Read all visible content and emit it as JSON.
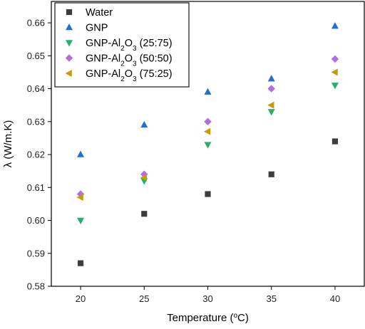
{
  "chart_data": {
    "type": "scatter",
    "xlabel": "Temperature (°C)",
    "xlabel_parts": [
      "Temperature (",
      "o",
      "C)"
    ],
    "ylabel": "λ (W/m.K)",
    "xlim": [
      17.7,
      42.3
    ],
    "ylim": [
      0.58,
      0.6665
    ],
    "x_ticks": [
      20,
      25,
      30,
      35,
      40
    ],
    "y_ticks": [
      0.58,
      0.59,
      0.6,
      0.61,
      0.62,
      0.63,
      0.64,
      0.65,
      0.66
    ],
    "x_tick_labels": [
      "20",
      "25",
      "30",
      "35",
      "40"
    ],
    "y_tick_labels": [
      "0.58",
      "0.59",
      "0.60",
      "0.61",
      "0.62",
      "0.63",
      "0.64",
      "0.65",
      "0.66"
    ],
    "grid": false,
    "legend_position": "top-left",
    "series": [
      {
        "name": "Water",
        "name_parts": [
          "Water"
        ],
        "marker": "square",
        "color": "#3d3d3d",
        "x": [
          20,
          25,
          30,
          35,
          40
        ],
        "values": [
          0.587,
          0.602,
          0.608,
          0.614,
          0.624
        ]
      },
      {
        "name": "GNP",
        "name_parts": [
          "GNP"
        ],
        "marker": "triangle-up",
        "color": "#1f6fd6",
        "x": [
          20,
          25,
          30,
          35,
          40
        ],
        "values": [
          0.62,
          0.629,
          0.639,
          0.643,
          0.659
        ]
      },
      {
        "name": "GNP-Al2O3 (25:75)",
        "name_parts": [
          "GNP-Al",
          "2",
          "O",
          "3",
          " (25:75)"
        ],
        "marker": "triangle-down",
        "color": "#26b06a",
        "x": [
          20,
          25,
          30,
          35,
          40
        ],
        "values": [
          0.6,
          0.612,
          0.623,
          0.633,
          0.641
        ]
      },
      {
        "name": "GNP-Al2O3 (50:50)",
        "name_parts": [
          "GNP-Al",
          "2",
          "O",
          "3",
          " (50:50)"
        ],
        "marker": "diamond",
        "color": "#b26ee0",
        "x": [
          20,
          25,
          30,
          35,
          40
        ],
        "values": [
          0.608,
          0.614,
          0.63,
          0.64,
          0.649
        ]
      },
      {
        "name": "GNP-Al2O3 (75:25)",
        "name_parts": [
          "GNP-Al",
          "2",
          "O",
          "3",
          " (75:25)"
        ],
        "marker": "triangle-left",
        "color": "#c99a06",
        "x": [
          20,
          25,
          30,
          35,
          40
        ],
        "values": [
          0.607,
          0.613,
          0.627,
          0.635,
          0.645
        ]
      }
    ]
  }
}
